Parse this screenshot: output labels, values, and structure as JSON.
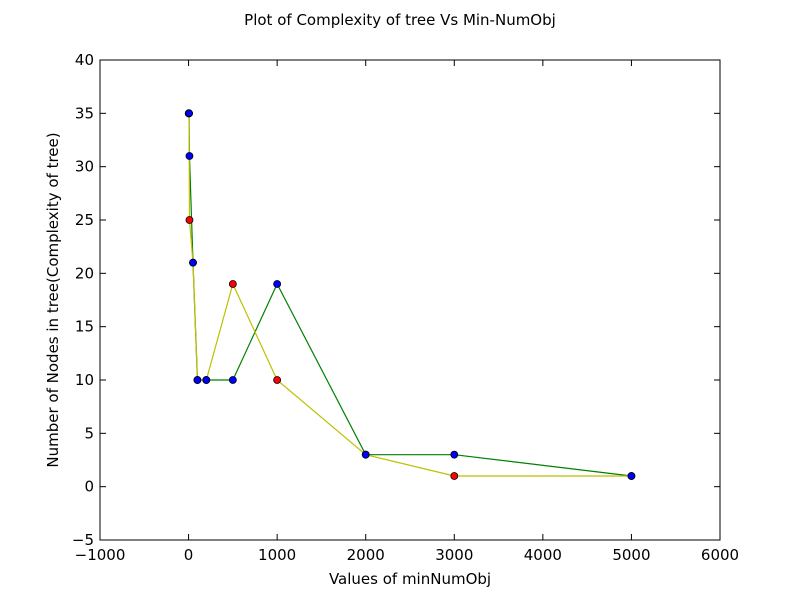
{
  "chart_data": {
    "type": "line",
    "title": "Plot of Complexity of tree Vs Min-NumObj",
    "xlabel": "Values of minNumObj",
    "ylabel": "Number of Nodes in tree(Complexity of tree)",
    "xlim": [
      -1000,
      6000
    ],
    "ylim": [
      -5,
      40
    ],
    "xticks": [
      -1000,
      0,
      1000,
      2000,
      3000,
      4000,
      5000,
      6000
    ],
    "yticks": [
      -5,
      0,
      5,
      10,
      15,
      20,
      25,
      30,
      35,
      40
    ],
    "xtick_labels": [
      "−1000",
      "0",
      "1000",
      "2000",
      "3000",
      "4000",
      "5000",
      "6000"
    ],
    "ytick_labels": [
      "−5",
      "0",
      "5",
      "10",
      "15",
      "20",
      "25",
      "30",
      "35",
      "40"
    ],
    "grid": false,
    "legend": false,
    "series": [
      {
        "color": "#008000",
        "marker_color": "#0000ff",
        "x": [
          2,
          5,
          10,
          50,
          100,
          200,
          500,
          1000,
          2000,
          3000,
          5000
        ],
        "y": [
          35,
          35,
          31,
          21,
          10,
          10,
          10,
          19,
          3,
          3,
          1
        ]
      },
      {
        "color": "#bfbf00",
        "marker_color": "#ff0000",
        "x": [
          2,
          5,
          10,
          50,
          100,
          200,
          500,
          1000,
          2000,
          3000,
          5000
        ],
        "y": [
          35,
          35,
          25,
          21,
          10,
          10,
          19,
          10,
          3,
          1,
          1
        ]
      }
    ]
  }
}
